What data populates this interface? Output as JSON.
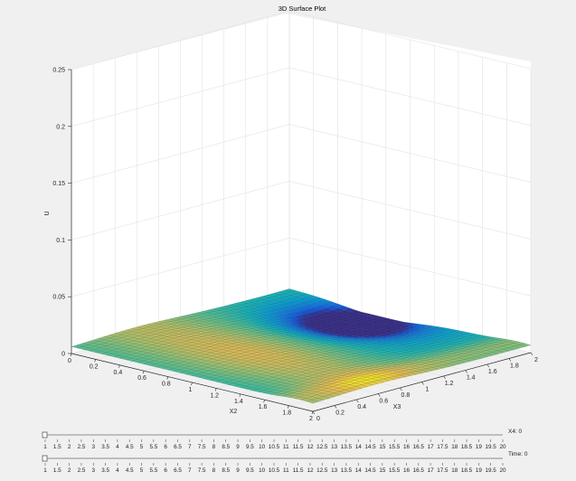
{
  "chart_data": {
    "type": "surface",
    "title": "3D Surface Plot",
    "xlabel": "X2",
    "ylabel": "X3",
    "zlabel": "U",
    "xlim": [
      0,
      2
    ],
    "ylim": [
      0,
      2
    ],
    "zlim": [
      0,
      0.25
    ],
    "xticks": [
      "0",
      "0.2",
      "0.4",
      "0.6",
      "0.8",
      "1",
      "1.2",
      "1.4",
      "1.6",
      "1.8",
      "2"
    ],
    "yticks": [
      "0",
      "0.2",
      "0.4",
      "0.6",
      "0.8",
      "1",
      "1.2",
      "1.4",
      "1.6",
      "1.8",
      "2"
    ],
    "zticks": [
      "0",
      "0.05",
      "0.1",
      "0.15",
      "0.2",
      "0.25"
    ],
    "grid": true,
    "colormap": "parula",
    "surface": {
      "description": "low-amplitude surface near U=0, minimum near X2=0.6-0.8, X3=1.8, maximum along X3≈0.6 with X2≈1.0",
      "u_min": 0.0,
      "u_max": 0.01
    }
  },
  "sliders": [
    {
      "label": "X4: 0",
      "value": 1,
      "ticks": [
        "1",
        "1.5",
        "2",
        "2.5",
        "3",
        "3.5",
        "4",
        "4.5",
        "5",
        "5.5",
        "6",
        "6.5",
        "7",
        "7.5",
        "8",
        "8.5",
        "9",
        "9.5",
        "10",
        "10.5",
        "11",
        "11.5",
        "12",
        "12.5",
        "13",
        "13.5",
        "14",
        "14.5",
        "15",
        "15.5",
        "16",
        "16.5",
        "17",
        "17.5",
        "18",
        "18.5",
        "19",
        "19.5",
        "20"
      ]
    },
    {
      "label": "Time: 0",
      "value": 1,
      "ticks": [
        "1",
        "1.5",
        "2",
        "2.5",
        "3",
        "3.5",
        "4",
        "4.5",
        "5",
        "5.5",
        "6",
        "6.5",
        "7",
        "7.5",
        "8",
        "8.5",
        "9",
        "9.5",
        "10",
        "10.5",
        "11",
        "11.5",
        "12",
        "12.5",
        "13",
        "13.5",
        "14",
        "14.5",
        "15",
        "15.5",
        "16",
        "16.5",
        "17",
        "17.5",
        "18",
        "18.5",
        "19",
        "19.5",
        "20"
      ]
    }
  ]
}
